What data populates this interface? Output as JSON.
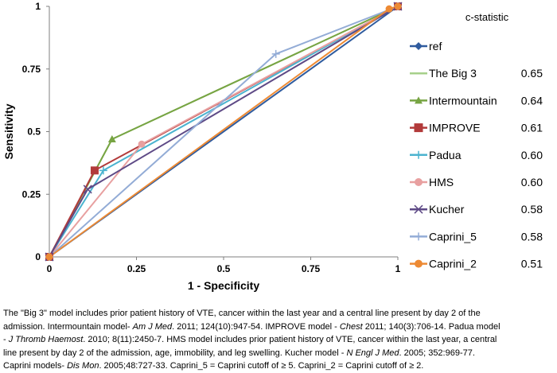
{
  "chart_data": {
    "type": "line",
    "xlabel": "1 - Specificity",
    "ylabel": "Sensitivity",
    "xlim": [
      0,
      1
    ],
    "ylim": [
      0,
      1
    ],
    "xticks": [
      "0",
      "0.25",
      "0.5",
      "0.75",
      "1"
    ],
    "yticks": [
      "0",
      "0.25",
      "0.5",
      "0.75",
      "1"
    ],
    "legend_placement": "right",
    "legend_header": "c-statistic",
    "series": [
      {
        "name": "ref",
        "c": "",
        "color": "#2f5b9e",
        "marker": "diamond",
        "x": [
          0,
          1
        ],
        "y": [
          0,
          1
        ]
      },
      {
        "name": "The Big 3",
        "c": "0.65",
        "color": "#a6d08a",
        "marker": "none",
        "x": [
          0,
          0.18,
          1
        ],
        "y": [
          0,
          0.47,
          1
        ]
      },
      {
        "name": "Intermountain",
        "c": "0.64",
        "color": "#77a443",
        "marker": "triangle",
        "x": [
          0,
          0.18,
          1
        ],
        "y": [
          0,
          0.47,
          1
        ]
      },
      {
        "name": "IMPROVE",
        "c": "0.61",
        "color": "#b23a3a",
        "marker": "square",
        "x": [
          0,
          0.13,
          1
        ],
        "y": [
          0,
          0.345,
          1
        ]
      },
      {
        "name": "Padua",
        "c": "0.60",
        "color": "#4bb3cf",
        "marker": "plus",
        "x": [
          0,
          0.155,
          1
        ],
        "y": [
          0,
          0.345,
          1
        ]
      },
      {
        "name": "HMS",
        "c": "0.60",
        "color": "#e8a0a0",
        "marker": "circle",
        "x": [
          0,
          0.265,
          1
        ],
        "y": [
          0,
          0.45,
          1
        ]
      },
      {
        "name": "Kucher",
        "c": "0.58",
        "color": "#5e4a86",
        "marker": "cross",
        "x": [
          0,
          0.11,
          1
        ],
        "y": [
          0,
          0.27,
          1
        ]
      },
      {
        "name": "Caprini_5",
        "c": "0.58",
        "color": "#93acd6",
        "marker": "plus",
        "x": [
          0,
          0.65,
          1
        ],
        "y": [
          0,
          0.81,
          1
        ]
      },
      {
        "name": "Caprini_2",
        "c": "0.51",
        "color": "#ed8a34",
        "marker": "circle",
        "x": [
          0,
          0.975,
          1
        ],
        "y": [
          0,
          0.99,
          1
        ]
      }
    ]
  },
  "caption": {
    "l1": "The \"Big 3\" model includes prior patient history of VTE, cancer within the last year and a central line present by day 2 of the",
    "l2a": "admission.  Intermountain model- ",
    "l2b": "Am J Med",
    "l2c": ". 2011; 124(10):947-54. IMPROVE model - ",
    "l2d": "Chest",
    "l2e": " 2011; 140(3):706-14.  Padua model",
    "l3a": "- ",
    "l3b": "J Thromb Haemost",
    "l3c": ". 2010; 8(11):2450-7.  HMS model includes prior patient history of VTE, cancer within the last year, a central",
    "l4a": "line present by day 2 of the admission, age, immobility, and leg swelling.  Kucher model  - ",
    "l4b": "N Engl J Med",
    "l4c": ". 2005; 352:969-77.",
    "l5a": "Caprini  models- ",
    "l5b": "Dis Mon",
    "l5c": ". 2005;48:727-33.  Caprini_5  = Caprini cutoff of ≥ 5. Caprini_2  = Caprini cutoff of ≥ 2."
  }
}
